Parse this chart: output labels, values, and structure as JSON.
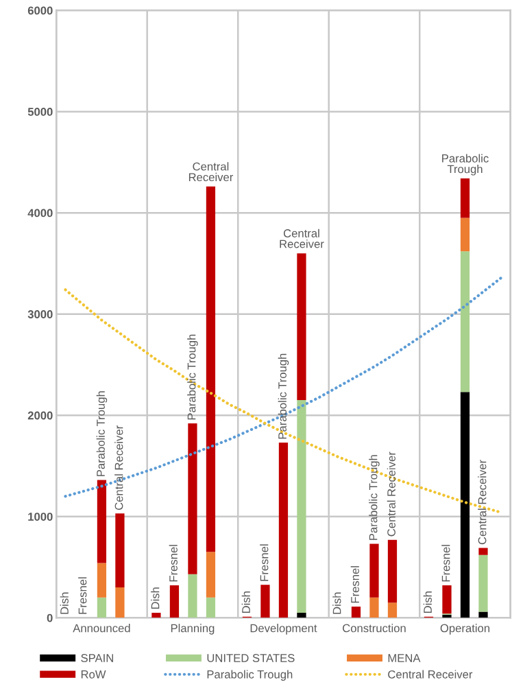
{
  "chart_data": {
    "type": "bar",
    "stacked": true,
    "categories": [
      "Dish",
      "Fresnel",
      "Parabolic Trough",
      "Central Receiver",
      null,
      "Dish",
      "Fresnel",
      "Parabolic Trough",
      "Central Receiver",
      null,
      "Dish",
      "Fresnel",
      "Parabolic Trough",
      "Central Receiver",
      null,
      "Dish",
      "Fresnel",
      "Parabolic Trough",
      "Central Receiver",
      null,
      "Dish",
      "Fresnel",
      "Parabolic Trough",
      "Central Receiver",
      null
    ],
    "annotations": [
      "Announced",
      "Planning",
      "Development",
      "Construction",
      "Operation"
    ],
    "series": [
      {
        "name": "SPAIN",
        "color": "#000000",
        "values": [
          null,
          null,
          null,
          null,
          null,
          null,
          null,
          null,
          null,
          null,
          null,
          null,
          null,
          50,
          null,
          null,
          null,
          null,
          null,
          null,
          null,
          30,
          2230,
          60,
          null
        ]
      },
      {
        "name": "UNITED STATES",
        "color": "#a9d18e",
        "values": [
          null,
          null,
          200,
          null,
          null,
          null,
          null,
          430,
          200,
          null,
          null,
          null,
          null,
          2100,
          null,
          null,
          null,
          null,
          null,
          null,
          null,
          10,
          1390,
          560,
          null
        ]
      },
      {
        "name": "MENA",
        "color": "#ed7d31",
        "values": [
          null,
          null,
          340,
          300,
          null,
          null,
          null,
          null,
          450,
          null,
          null,
          null,
          null,
          null,
          null,
          null,
          null,
          200,
          150,
          null,
          null,
          null,
          330,
          null,
          null
        ]
      },
      {
        "name": "RoW",
        "color": "#c00000",
        "values": [
          null,
          null,
          820,
          730,
          null,
          50,
          320,
          1490,
          3610,
          null,
          10,
          325,
          1730,
          1450,
          null,
          null,
          110,
          530,
          620,
          null,
          10,
          280,
          390,
          70,
          null
        ]
      },
      {
        "name": "Parabolic Trough",
        "type": "line",
        "line_style": "dotted",
        "color": "#5b9bd5",
        "values": [
          1200,
          1250,
          1300,
          1360,
          1420,
          1480,
          1550,
          1620,
          1690,
          1760,
          1840,
          1920,
          2000,
          2090,
          2180,
          2280,
          2380,
          2480,
          2590,
          2710,
          2830,
          2950,
          3080,
          3220,
          3360
        ]
      },
      {
        "name": "Central Receiver",
        "type": "line",
        "line_style": "dotted",
        "color": "#f0c330",
        "values": [
          3240,
          3090,
          2940,
          2810,
          2680,
          2550,
          2440,
          2320,
          2220,
          2110,
          2020,
          1920,
          1830,
          1750,
          1670,
          1590,
          1520,
          1450,
          1380,
          1320,
          1260,
          1200,
          1140,
          1090,
          1040
        ]
      }
    ],
    "ylim": [
      0,
      6000
    ],
    "yticks": [
      0,
      1000,
      2000,
      3000,
      4000,
      5000,
      6000
    ],
    "grid": true,
    "legend": "bottom",
    "tick_labels": "y"
  }
}
